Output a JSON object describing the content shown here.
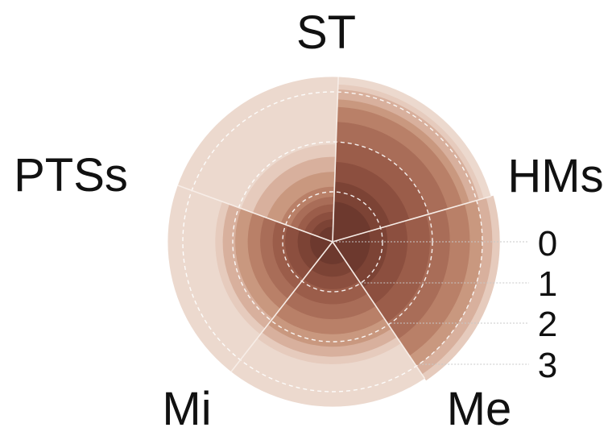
{
  "chart_data": {
    "type": "polar-area",
    "categories": [
      "ST",
      "HMs",
      "Me",
      "Mi",
      "PTSs"
    ],
    "radial_ticks": [
      "0",
      "1",
      "2",
      "3"
    ],
    "sector_values": [
      [
        1.95,
        1.7,
        1.4,
        1.1,
        0.9,
        0.75,
        0.6,
        0.45,
        0.3
      ],
      [
        3.15,
        3.05,
        2.85,
        2.7,
        2.4,
        2.0,
        1.6,
        1.2,
        0.8
      ],
      [
        3.35,
        3.2,
        3.0,
        2.75,
        2.35,
        1.95,
        1.5,
        1.1,
        0.75
      ],
      [
        2.45,
        2.3,
        2.1,
        1.85,
        1.55,
        1.25,
        0.95,
        0.7,
        0.45
      ],
      [
        2.35,
        2.2,
        1.95,
        1.7,
        1.45,
        1.2,
        0.95,
        0.7,
        0.45
      ]
    ],
    "background_max": 3.3,
    "colors": {
      "background": "#ecd9ce",
      "layers": [
        "#e6cbbd",
        "#d8b09d",
        "#c9987f",
        "#b98068",
        "#a96d58",
        "#9b5d4a",
        "#8c4f3f",
        "#7c4335",
        "#6d392e"
      ],
      "dashed_circle": "#ffffff",
      "divider": "#f7ede7",
      "tick_leader": "#c8c8c8"
    }
  }
}
